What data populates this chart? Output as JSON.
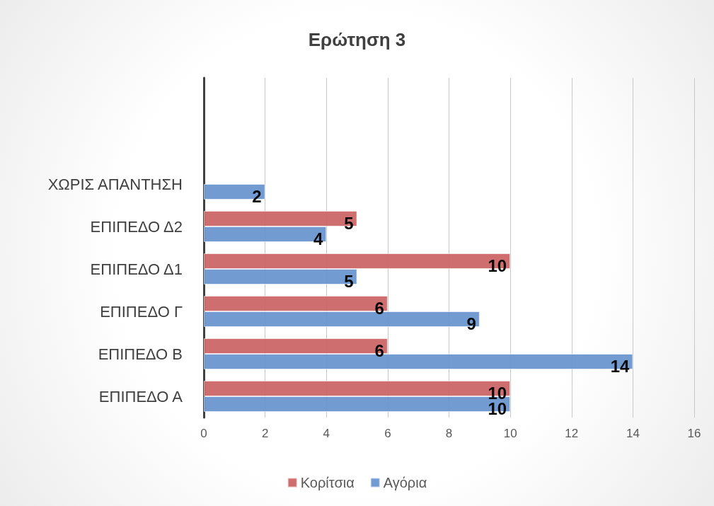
{
  "chart_data": {
    "type": "bar",
    "orientation": "horizontal",
    "title": "Ερώτηση 3",
    "categories": [
      null,
      null,
      "ΧΩΡΙΣ ΑΠΑΝΤΗΣΗ",
      "ΕΠΙΠΕΔΟ Δ2",
      "ΕΠΙΠΕΔΟ Δ1",
      "ΕΠΙΠΕΔΟ Γ",
      "ΕΠΙΠΕΔΟ Β",
      "ΕΠΙΠΕΔΟ Α"
    ],
    "series": [
      {
        "name": "Κορίτσια",
        "color": "#cc6666",
        "values": [
          null,
          null,
          null,
          5,
          10,
          6,
          6,
          10
        ]
      },
      {
        "name": "Αγόρια",
        "color": "#6a96cf",
        "values": [
          null,
          null,
          2,
          4,
          5,
          9,
          14,
          10
        ]
      }
    ],
    "xlim": [
      0,
      16
    ],
    "xticks": [
      0,
      2,
      4,
      6,
      8,
      10,
      12,
      14,
      16
    ],
    "grid": "x",
    "legend": "bottom",
    "data_labels": true
  }
}
